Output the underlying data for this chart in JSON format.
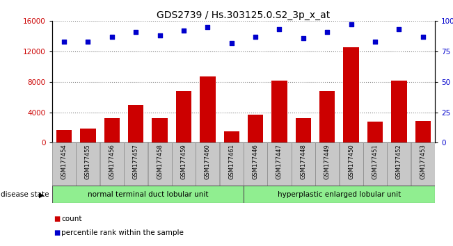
{
  "title": "GDS2739 / Hs.303125.0.S2_3p_x_at",
  "categories": [
    "GSM177454",
    "GSM177455",
    "GSM177456",
    "GSM177457",
    "GSM177458",
    "GSM177459",
    "GSM177460",
    "GSM177461",
    "GSM177446",
    "GSM177447",
    "GSM177448",
    "GSM177449",
    "GSM177450",
    "GSM177451",
    "GSM177452",
    "GSM177453"
  ],
  "counts": [
    1700,
    1900,
    3200,
    5000,
    3200,
    6800,
    8700,
    1500,
    3700,
    8200,
    3200,
    6800,
    12500,
    2800,
    8200,
    2900
  ],
  "percentiles": [
    83,
    83,
    87,
    91,
    88,
    92,
    95,
    82,
    87,
    93,
    86,
    91,
    97,
    83,
    93,
    87
  ],
  "bar_color": "#cc0000",
  "dot_color": "#0000cc",
  "ylim_left": [
    0,
    16000
  ],
  "ylim_right": [
    0,
    100
  ],
  "yticks_left": [
    0,
    4000,
    8000,
    12000,
    16000
  ],
  "yticks_right": [
    0,
    25,
    50,
    75,
    100
  ],
  "group1_label": "normal terminal duct lobular unit",
  "group2_label": "hyperplastic enlarged lobular unit",
  "group1_count": 8,
  "group2_count": 8,
  "disease_state_label": "disease state",
  "legend_count_label": "count",
  "legend_percentile_label": "percentile rank within the sample",
  "xticklabel_bg": "#c8c8c8",
  "group_bg": "#90ee90",
  "title_fontsize": 10,
  "bar_width": 0.65
}
